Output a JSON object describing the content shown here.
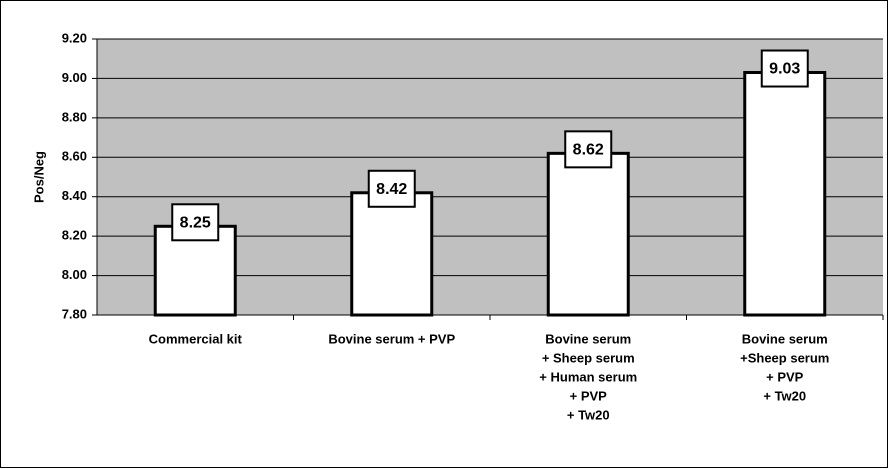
{
  "chart_data": {
    "type": "bar",
    "y_label": "Pos/Neg",
    "categories": [
      [
        "Commercial kit"
      ],
      [
        "Bovine serum  + PVP"
      ],
      [
        "Bovine serum",
        "+ Sheep serum",
        "+ Human serum",
        "+ PVP",
        "+ Tw20"
      ],
      [
        "Bovine serum",
        "+Sheep serum",
        "+ PVP",
        "+ Tw20"
      ]
    ],
    "values": [
      8.25,
      8.42,
      8.62,
      9.03
    ],
    "color": "#ffffff",
    "background": "#c0c0c0",
    "ylim": [
      7.8,
      9.2
    ],
    "yticks": [
      {
        "value": 7.8,
        "label": "7.80"
      },
      {
        "value": 8.0,
        "label": "8.00"
      },
      {
        "value": 8.2,
        "label": "8.20"
      },
      {
        "value": 8.4,
        "label": "8.40"
      },
      {
        "value": 8.6,
        "label": "8.60"
      },
      {
        "value": 8.8,
        "label": "8.80"
      },
      {
        "value": 9.0,
        "label": "9.00"
      },
      {
        "value": 9.2,
        "label": "9.20"
      }
    ],
    "grid": true
  }
}
